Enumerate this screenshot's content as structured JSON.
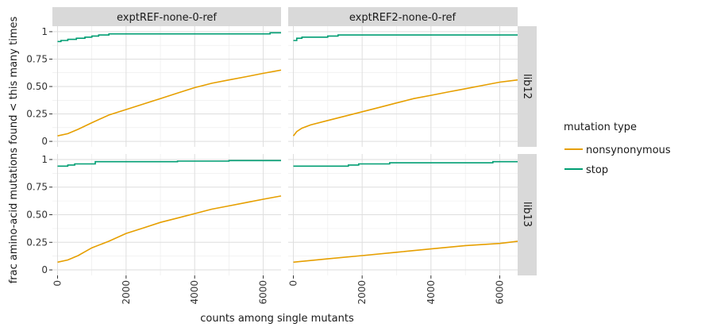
{
  "chart_data": {
    "type": "line",
    "facet_columns": [
      "exptREF-none-0-ref",
      "exptREF2-none-0-ref"
    ],
    "facet_rows": [
      "lib12",
      "lib13"
    ],
    "xlabel": "counts among single mutants",
    "ylabel": "frac amino-acid mutations found < this many times",
    "xlim": [
      -150,
      6520
    ],
    "ylim": [
      -0.05,
      1.05
    ],
    "x_ticks": [
      0,
      2000,
      4000,
      6000
    ],
    "x_tick_labels": [
      "0",
      "2000",
      "4000",
      "6000"
    ],
    "y_ticks": [
      0,
      0.25,
      0.5,
      0.75,
      1
    ],
    "y_tick_labels": [
      "0",
      "0.25",
      "0.50",
      "0.75",
      "1"
    ],
    "grid": true,
    "legend": {
      "title": "mutation type",
      "position": "right",
      "entries": [
        {
          "label": "nonsynonymous",
          "color": "#E69F00"
        },
        {
          "label": "stop",
          "color": "#009E73"
        }
      ]
    },
    "panels": [
      {
        "column": 0,
        "row": 0,
        "series": [
          {
            "name": "nonsynonymous",
            "color": "#E69F00",
            "points": [
              [
                0,
                0.05
              ],
              [
                300,
                0.07
              ],
              [
                600,
                0.11
              ],
              [
                1000,
                0.17
              ],
              [
                1500,
                0.24
              ],
              [
                2000,
                0.29
              ],
              [
                2500,
                0.34
              ],
              [
                3000,
                0.39
              ],
              [
                3500,
                0.44
              ],
              [
                4000,
                0.49
              ],
              [
                4500,
                0.53
              ],
              [
                5000,
                0.56
              ],
              [
                5500,
                0.59
              ],
              [
                6000,
                0.62
              ],
              [
                6520,
                0.65
              ]
            ]
          },
          {
            "name": "stop",
            "color": "#009E73",
            "step": true,
            "points": [
              [
                0,
                0.91
              ],
              [
                100,
                0.92
              ],
              [
                300,
                0.93
              ],
              [
                550,
                0.94
              ],
              [
                800,
                0.95
              ],
              [
                1000,
                0.96
              ],
              [
                1200,
                0.97
              ],
              [
                1500,
                0.98
              ],
              [
                6200,
                0.99
              ],
              [
                6520,
                0.99
              ]
            ]
          }
        ]
      },
      {
        "column": 1,
        "row": 0,
        "series": [
          {
            "name": "nonsynonymous",
            "color": "#E69F00",
            "points": [
              [
                0,
                0.05
              ],
              [
                100,
                0.09
              ],
              [
                250,
                0.12
              ],
              [
                500,
                0.15
              ],
              [
                1000,
                0.19
              ],
              [
                1500,
                0.23
              ],
              [
                2000,
                0.27
              ],
              [
                2500,
                0.31
              ],
              [
                3000,
                0.35
              ],
              [
                3500,
                0.39
              ],
              [
                4000,
                0.42
              ],
              [
                4500,
                0.45
              ],
              [
                5000,
                0.48
              ],
              [
                5500,
                0.51
              ],
              [
                6000,
                0.54
              ],
              [
                6520,
                0.56
              ]
            ]
          },
          {
            "name": "stop",
            "color": "#009E73",
            "step": true,
            "points": [
              [
                0,
                0.92
              ],
              [
                100,
                0.94
              ],
              [
                250,
                0.95
              ],
              [
                1000,
                0.96
              ],
              [
                1300,
                0.97
              ],
              [
                6520,
                0.97
              ]
            ]
          }
        ]
      },
      {
        "column": 0,
        "row": 1,
        "series": [
          {
            "name": "nonsynonymous",
            "color": "#E69F00",
            "points": [
              [
                0,
                0.07
              ],
              [
                300,
                0.09
              ],
              [
                600,
                0.13
              ],
              [
                1000,
                0.2
              ],
              [
                1500,
                0.26
              ],
              [
                2000,
                0.33
              ],
              [
                2500,
                0.38
              ],
              [
                3000,
                0.43
              ],
              [
                3500,
                0.47
              ],
              [
                4000,
                0.51
              ],
              [
                4500,
                0.55
              ],
              [
                5000,
                0.58
              ],
              [
                5500,
                0.61
              ],
              [
                6000,
                0.64
              ],
              [
                6520,
                0.67
              ]
            ]
          },
          {
            "name": "stop",
            "color": "#009E73",
            "step": true,
            "points": [
              [
                0,
                0.94
              ],
              [
                300,
                0.95
              ],
              [
                500,
                0.96
              ],
              [
                1100,
                0.98
              ],
              [
                3500,
                0.985
              ],
              [
                5000,
                0.99
              ],
              [
                6520,
                0.99
              ]
            ]
          }
        ]
      },
      {
        "column": 1,
        "row": 1,
        "series": [
          {
            "name": "nonsynonymous",
            "color": "#E69F00",
            "points": [
              [
                0,
                0.07
              ],
              [
                1000,
                0.1
              ],
              [
                2000,
                0.13
              ],
              [
                3000,
                0.16
              ],
              [
                4000,
                0.19
              ],
              [
                5000,
                0.22
              ],
              [
                6000,
                0.24
              ],
              [
                6520,
                0.26
              ]
            ]
          },
          {
            "name": "stop",
            "color": "#009E73",
            "step": true,
            "points": [
              [
                0,
                0.94
              ],
              [
                1600,
                0.95
              ],
              [
                1900,
                0.96
              ],
              [
                2800,
                0.97
              ],
              [
                5800,
                0.98
              ],
              [
                6520,
                0.98
              ]
            ]
          }
        ]
      }
    ]
  }
}
